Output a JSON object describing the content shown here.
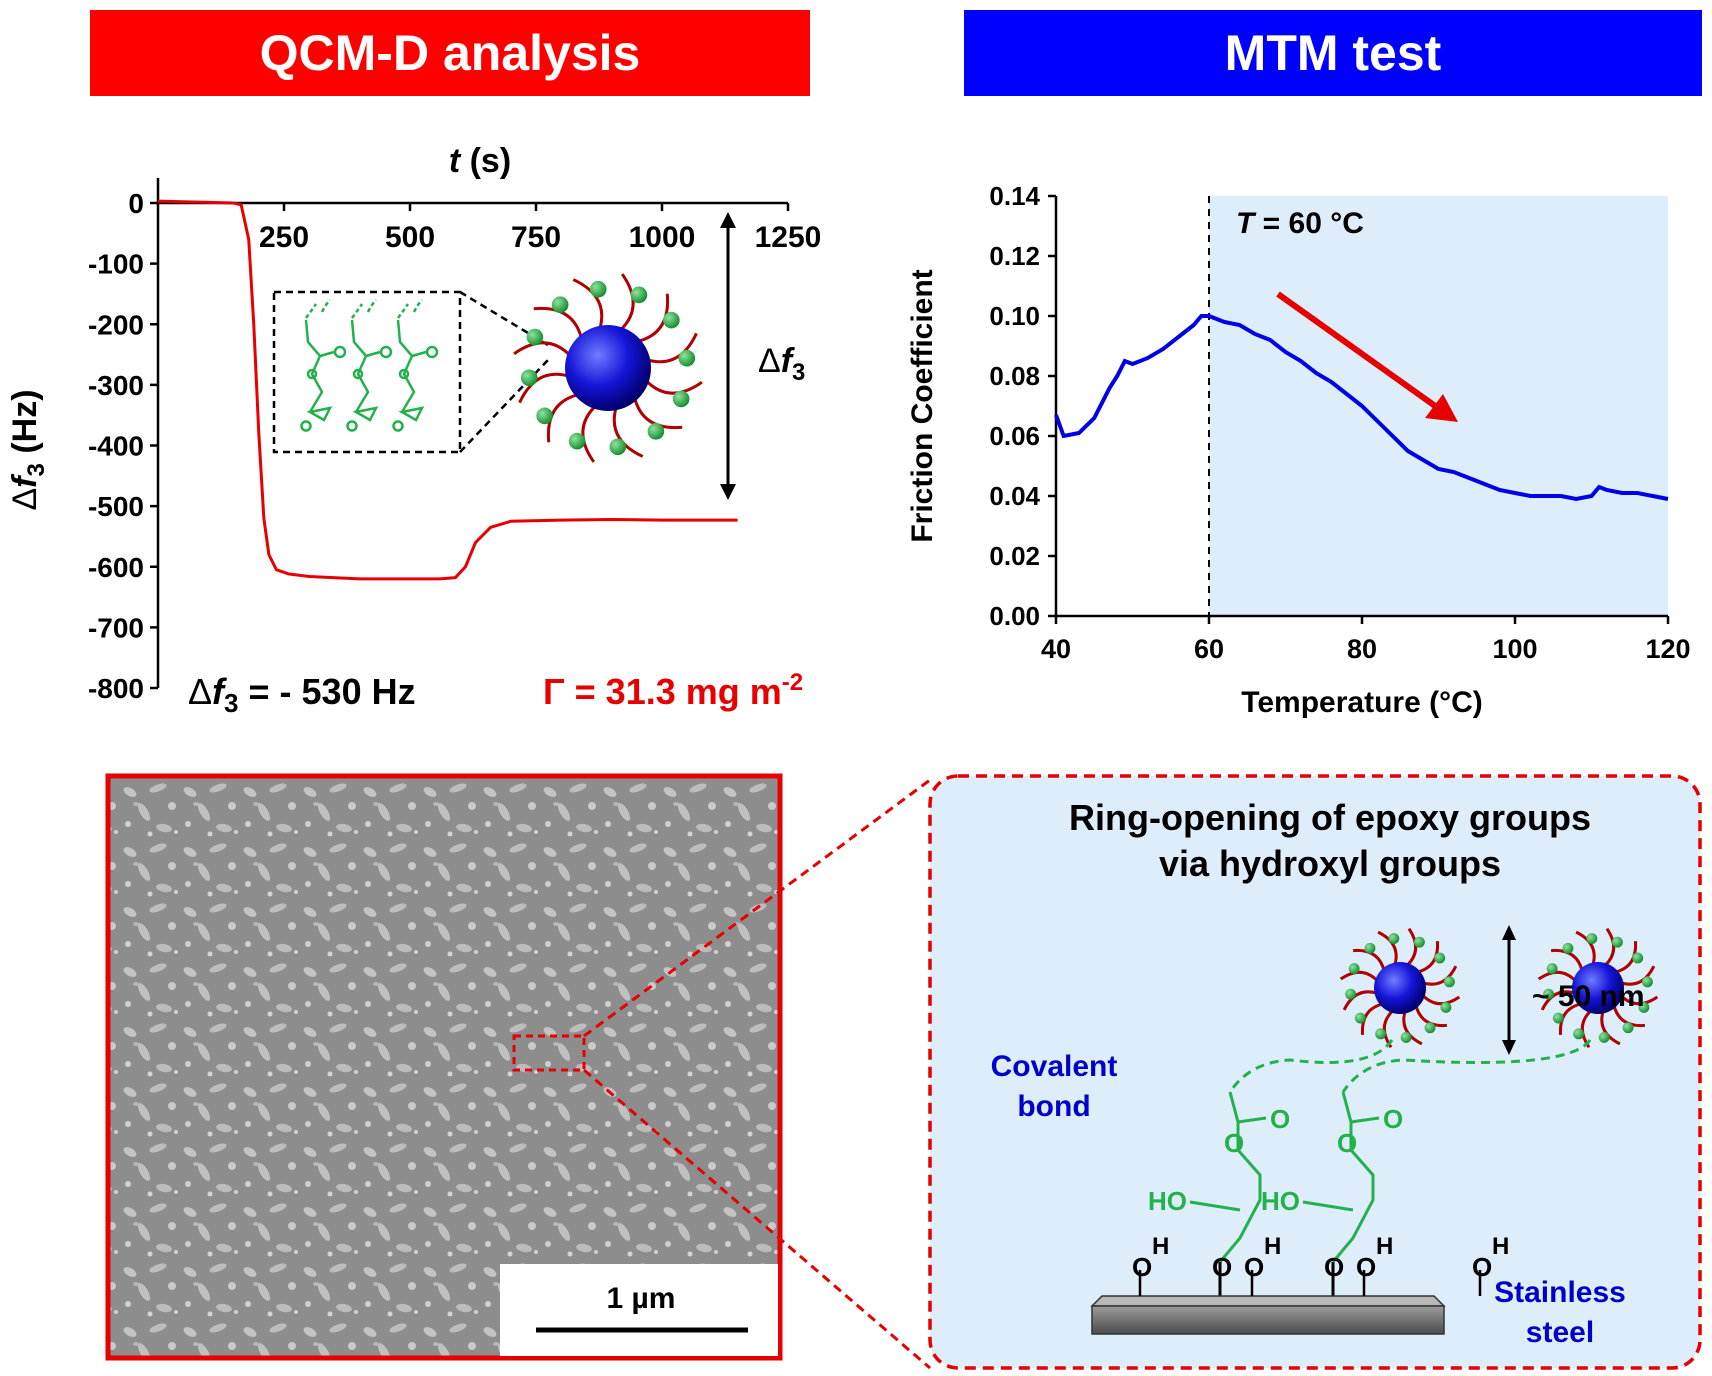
{
  "banners": {
    "left": "QCM-D analysis",
    "right": "MTM test"
  },
  "colors": {
    "red": "#ff0000",
    "blue": "#0000ff",
    "green": "#22b14c",
    "panel_bg": "#ddeefa"
  },
  "qcm": {
    "x_axis_title_italic": "t",
    "x_axis_title_rest": " (s)",
    "y_axis_title_prefix": "Δ",
    "y_axis_title_var": "f",
    "y_axis_title_sub": "3",
    "y_axis_title_rest": " (Hz)",
    "delta_label_prefix": "Δ",
    "delta_label_var": "f",
    "delta_label_sub": "3",
    "result_prefix": "Δ",
    "result_var": "f",
    "result_sub": "3",
    "result_rest": " = - 530 Hz",
    "gamma_text": "Γ = 31.3 mg m",
    "gamma_exp": "-2"
  },
  "mtm": {
    "annotation_var": "T",
    "annotation_rest": " = 60 °C"
  },
  "bottom": {
    "scale_bar_label": "1 µm",
    "panel_title_line1": "Ring-opening of epoxy groups",
    "panel_title_line2": "via hydroxyl groups",
    "size_label": "~ 50 nm",
    "covalent_line1": "Covalent",
    "covalent_line2": "bond",
    "steel_line1": "Stainless",
    "steel_line2": "steel",
    "ho_label": "HO",
    "o_label": "O",
    "h_label": "H"
  },
  "chart_data": [
    {
      "type": "line",
      "title": "",
      "xlabel": "t (s)",
      "ylabel": "Δf3 (Hz)",
      "xlim": [
        0,
        1250
      ],
      "ylim": [
        -800,
        0
      ],
      "x_ticks": [
        "250",
        "500",
        "750",
        "1000",
        "1250"
      ],
      "y_ticks": [
        "0",
        "-100",
        "-200",
        "-300",
        "-400",
        "-500",
        "-600",
        "-700",
        "-800"
      ],
      "series": [
        {
          "x": [
            0,
            50,
            100,
            150,
            165,
            180,
            190,
            200,
            210,
            220,
            235,
            260,
            300,
            400,
            500,
            560,
            590,
            610,
            630,
            660,
            700,
            800,
            900,
            1000,
            1100,
            1150
          ],
          "values": [
            3,
            2,
            1,
            0,
            -3,
            -60,
            -200,
            -380,
            -520,
            -580,
            -605,
            -612,
            -616,
            -620,
            -620,
            -620,
            -618,
            -600,
            -560,
            -535,
            -525,
            -523,
            -522,
            -523,
            -523,
            -523
          ]
        }
      ]
    },
    {
      "type": "line",
      "title": "",
      "xlabel": "Temperature (°C)",
      "ylabel": "Friction Coefficient",
      "xlim": [
        40,
        120
      ],
      "ylim": [
        0,
        0.14
      ],
      "x_ticks": [
        "40",
        "60",
        "80",
        "100",
        "120"
      ],
      "y_ticks": [
        "0.00",
        "0.02",
        "0.04",
        "0.06",
        "0.08",
        "0.10",
        "0.12",
        "0.14"
      ],
      "series": [
        {
          "x": [
            40,
            41,
            43,
            45,
            47,
            48,
            49,
            50,
            52,
            54,
            56,
            58,
            59,
            60,
            62,
            64,
            66,
            68,
            70,
            72,
            74,
            76,
            78,
            80,
            82,
            84,
            86,
            88,
            90,
            92,
            94,
            96,
            98,
            100,
            102,
            104,
            106,
            108,
            110,
            111,
            112,
            114,
            116,
            118,
            120
          ],
          "values": [
            0.067,
            0.06,
            0.061,
            0.066,
            0.076,
            0.08,
            0.085,
            0.084,
            0.086,
            0.089,
            0.093,
            0.097,
            0.1,
            0.1,
            0.098,
            0.097,
            0.094,
            0.092,
            0.088,
            0.085,
            0.081,
            0.078,
            0.074,
            0.07,
            0.065,
            0.06,
            0.055,
            0.052,
            0.049,
            0.048,
            0.046,
            0.044,
            0.042,
            0.041,
            0.04,
            0.04,
            0.04,
            0.039,
            0.04,
            0.043,
            0.042,
            0.041,
            0.041,
            0.04,
            0.039
          ]
        }
      ]
    }
  ]
}
